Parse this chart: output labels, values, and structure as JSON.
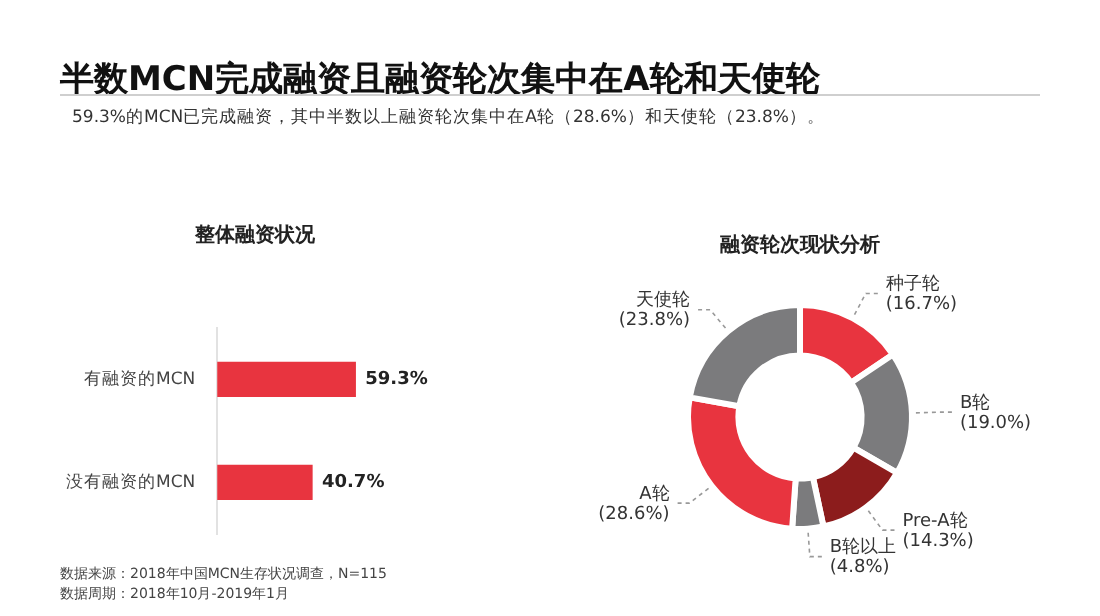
{
  "chart_data": [
    {
      "type": "other",
      "title": "半数MCN完成融资且融资轮次集中在A轮和天使轮",
      "subtitle": "59.3%的MCN已完成融资，其中半数以上融资轮次集中在A轮（28.6%）和天使轮（23.8%）。",
      "annotations": [
        "数据来源：2018年中国MCN生存状况调查，N=115",
        "数据周期：2018年10月-2019年1月"
      ]
    },
    {
      "type": "bar",
      "orientation": "horizontal",
      "title": "整体融资状况",
      "categories": [
        "有融资的MCN",
        "没有融资的MCN"
      ],
      "values": [
        59.3,
        40.7
      ],
      "color": "#e8343f",
      "value_labels": [
        "59.3%",
        "40.7%"
      ],
      "tick_labels": "y"
    },
    {
      "type": "donut",
      "title": "融资轮次现状分析",
      "categories": [
        "种子轮",
        "B轮",
        "Pre-A轮",
        "B轮以上",
        "A轮",
        "天使轮"
      ],
      "values": [
        16.7,
        19.0,
        14.3,
        4.8,
        28.6,
        23.8
      ],
      "colors": [
        "#e8343f",
        "#7b7b7d",
        "#8c1c1c",
        "#7b7b7d",
        "#e8343f",
        "#7b7b7d"
      ],
      "value_labels": [
        "(16.7%)",
        "(19.0%)",
        "(14.3%)",
        "(4.8%)",
        "(28.6%)",
        "(23.8%)"
      ]
    }
  ]
}
